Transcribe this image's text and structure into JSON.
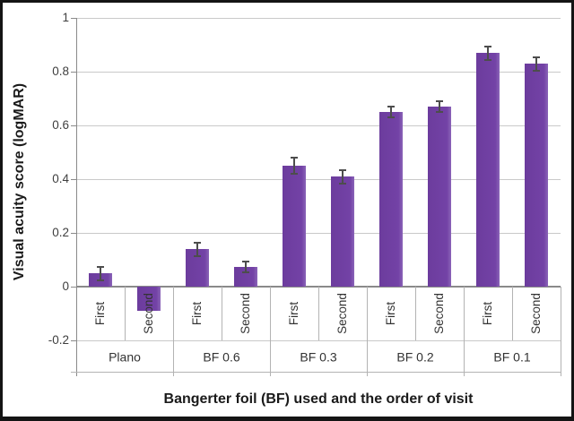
{
  "figure": {
    "x_axis_title": "Bangerter foil (BF) used and the order of visit",
    "y_axis_title": "Visual acuity score (logMAR)"
  },
  "chart_data": {
    "type": "bar",
    "title": "",
    "xlabel": "Bangerter foil (BF) used and the order of visit",
    "ylabel": "Visual acuity score (logMAR)",
    "ylim": [
      -0.2,
      1.0
    ],
    "ytick_values": [
      1,
      0.8,
      0.6,
      0.4,
      0.2,
      0,
      -0.2
    ],
    "ytick_labels": [
      "1",
      "0.8",
      "0.6",
      "0.4",
      "0.2",
      "0",
      "-0.2"
    ],
    "grid": true,
    "legend": "none",
    "bar_color": "#7040A2",
    "error_bar_color": "#4D4D4D",
    "category_levels": [
      "order of visit",
      "Bangerter foil"
    ],
    "groups": [
      {
        "label": "Plano",
        "bars": [
          {
            "label": "First",
            "value": 0.05,
            "error": 0.025
          },
          {
            "label": "Second",
            "value": -0.09,
            "error": 0
          }
        ]
      },
      {
        "label": "BF 0.6",
        "bars": [
          {
            "label": "First",
            "value": 0.14,
            "error": 0.025
          },
          {
            "label": "Second",
            "value": 0.075,
            "error": 0.02
          }
        ]
      },
      {
        "label": "BF 0.3",
        "bars": [
          {
            "label": "First",
            "value": 0.45,
            "error": 0.03
          },
          {
            "label": "Second",
            "value": 0.41,
            "error": 0.025
          }
        ]
      },
      {
        "label": "BF 0.2",
        "bars": [
          {
            "label": "First",
            "value": 0.65,
            "error": 0.02
          },
          {
            "label": "Second",
            "value": 0.67,
            "error": 0.02
          }
        ]
      },
      {
        "label": "BF 0.1",
        "bars": [
          {
            "label": "First",
            "value": 0.87,
            "error": 0.025
          },
          {
            "label": "Second",
            "value": 0.83,
            "error": 0.025
          }
        ]
      }
    ]
  }
}
